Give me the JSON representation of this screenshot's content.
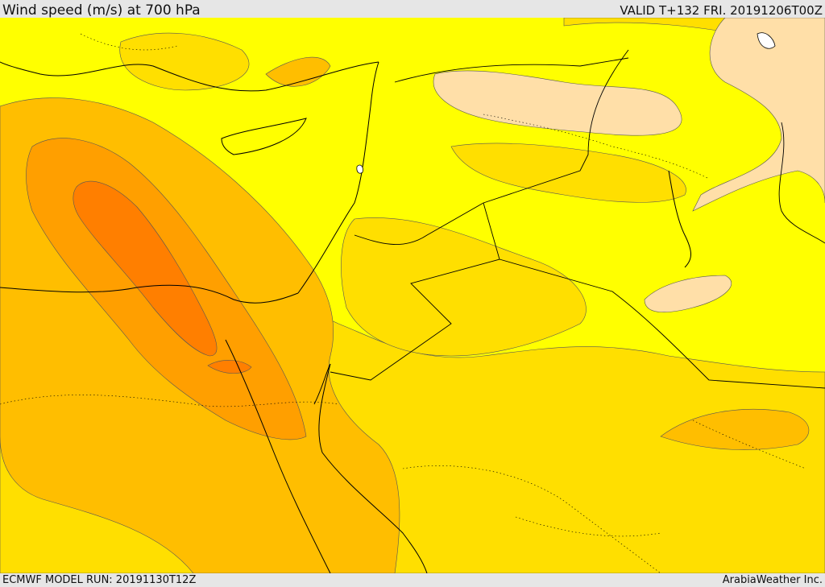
{
  "header": {
    "title": "Wind speed (m/s) at 700 hPa",
    "valid_time": "VALID T+132 FRI. 20191206T00Z"
  },
  "footer": {
    "model_run": "ECMWF MODEL RUN: 20191130T12Z",
    "credit": "ArabiaWeather Inc."
  },
  "map": {
    "variable": "wind speed",
    "level": "700 hPa",
    "colors": {
      "background": "#ffff00",
      "band_light": "#ffdf00",
      "band_mid": "#ffbe00",
      "band_strong": "#ff9f00",
      "band_max": "#ff7f00",
      "band_calm": "#ffdfa8",
      "coastline": "#000000",
      "contour": "#555555"
    }
  }
}
